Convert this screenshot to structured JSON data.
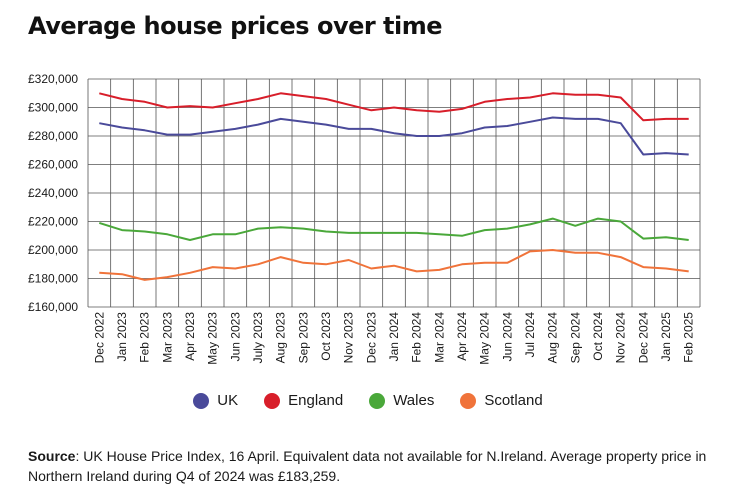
{
  "title": "Average house prices over time",
  "source_label": "Source",
  "source_text": ": UK House Price Index, 16 April. Equivalent data not available for N.Ireland. Average property price in Northern Ireland during Q4 of 2024 was £183,259.",
  "chart_data": {
    "type": "line",
    "title": "Average house prices over time",
    "xlabel": "",
    "ylabel": "",
    "ylim": [
      160000,
      320000
    ],
    "yticks": [
      "£160,000",
      "£180,000",
      "£200,000",
      "£220,000",
      "£240,000",
      "£260,000",
      "£280,000",
      "£300,000",
      "£320,000"
    ],
    "ytick_values": [
      160000,
      180000,
      200000,
      220000,
      240000,
      260000,
      280000,
      300000,
      320000
    ],
    "grid": true,
    "legend_position": "bottom",
    "categories": [
      "Dec 2022",
      "Jan 2023",
      "Feb 2023",
      "Mar 2023",
      "Apr 2023",
      "May 2023",
      "Jun 2023",
      "July 2023",
      "Aug 2023",
      "Sep 2023",
      "Oct 2023",
      "Nov 2023",
      "Dec 2023",
      "Jan 2024",
      "Feb 2024",
      "Mar 2024",
      "Apr 2024",
      "May 2024",
      "Jun 2024",
      "Jul 2024",
      "Aug 2024",
      "Sep 2024",
      "Oct 2024",
      "Nov 2024",
      "Dec 2024",
      "Jan 2025",
      "Feb 2025"
    ],
    "series": [
      {
        "name": "UK",
        "color": "#4a4a9a",
        "values": [
          289000,
          286000,
          284000,
          281000,
          281000,
          283000,
          285000,
          288000,
          292000,
          290000,
          288000,
          285000,
          285000,
          282000,
          280000,
          280000,
          282000,
          286000,
          287000,
          290000,
          293000,
          292000,
          292000,
          289000,
          267000,
          268000,
          267000
        ]
      },
      {
        "name": "England",
        "color": "#d81e2a",
        "values": [
          310000,
          306000,
          304000,
          300000,
          301000,
          300000,
          303000,
          306000,
          310000,
          308000,
          306000,
          302000,
          298000,
          300000,
          298000,
          297000,
          299000,
          304000,
          306000,
          307000,
          310000,
          309000,
          309000,
          307000,
          291000,
          292000,
          292000
        ]
      },
      {
        "name": "Wales",
        "color": "#4aa83a",
        "values": [
          219000,
          214000,
          213000,
          211000,
          207000,
          211000,
          211000,
          215000,
          216000,
          215000,
          213000,
          212000,
          212000,
          212000,
          212000,
          211000,
          210000,
          214000,
          215000,
          218000,
          222000,
          217000,
          222000,
          220000,
          208000,
          209000,
          207000
        ]
      },
      {
        "name": "Scotland",
        "color": "#f0733a",
        "values": [
          184000,
          183000,
          179000,
          181000,
          184000,
          188000,
          187000,
          190000,
          195000,
          191000,
          190000,
          193000,
          187000,
          189000,
          185000,
          186000,
          190000,
          191000,
          191000,
          199000,
          200000,
          198000,
          198000,
          195000,
          188000,
          187000,
          185000
        ]
      }
    ]
  }
}
